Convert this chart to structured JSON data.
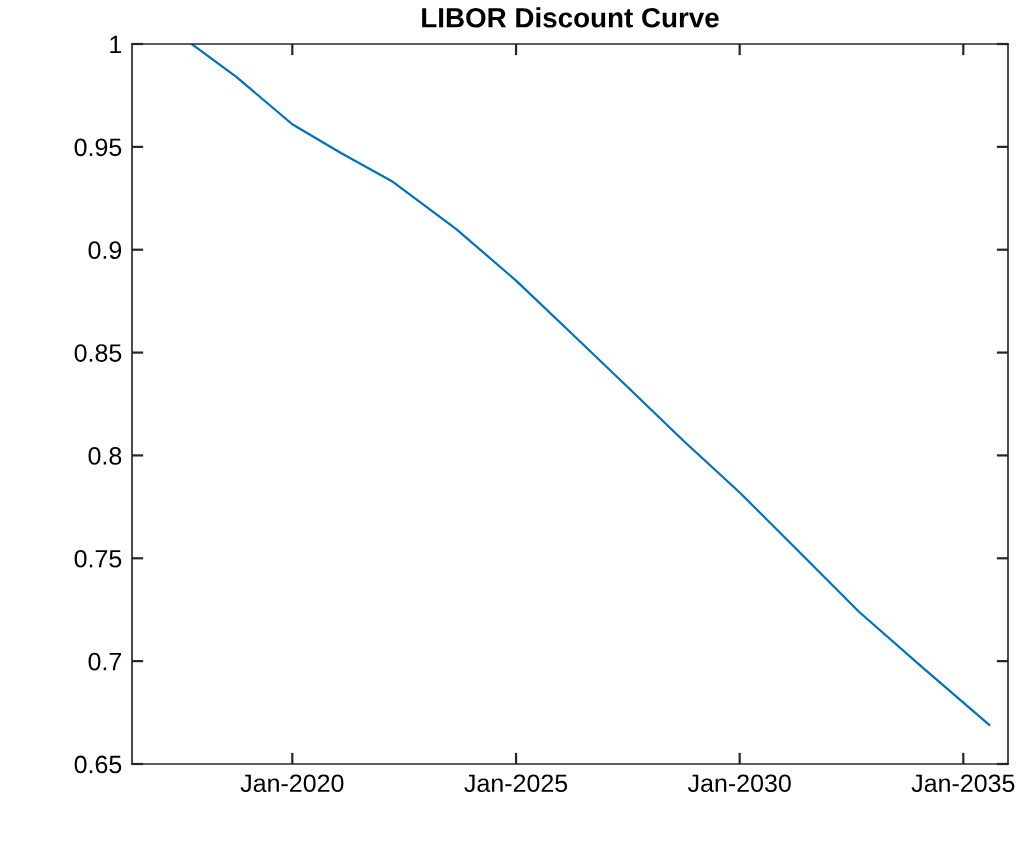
{
  "chart_data": {
    "type": "line",
    "title": "LIBOR Discount Curve",
    "x": [
      "2017-10",
      "2018-10",
      "2020-01",
      "2021-02",
      "2022-04",
      "2023-09",
      "2025-01",
      "2026-03",
      "2027-06",
      "2028-10",
      "2030-01",
      "2031-04",
      "2032-09",
      "2034-02",
      "2035-08"
    ],
    "series": [
      {
        "color": "#0072bd",
        "values": [
          1.0,
          0.984,
          0.961,
          0.947,
          0.933,
          0.91,
          0.885,
          0.861,
          0.835,
          0.807,
          0.782,
          0.755,
          0.724,
          0.697,
          0.669
        ]
      }
    ],
    "xlim": [
      "2016-06",
      "2036-01"
    ],
    "xticks": [
      {
        "value": "2020-01",
        "label": "Jan-2020"
      },
      {
        "value": "2025-01",
        "label": "Jan-2025"
      },
      {
        "value": "2030-01",
        "label": "Jan-2030"
      },
      {
        "value": "2035-01",
        "label": "Jan-2035"
      }
    ],
    "ylim": [
      0.65,
      1
    ],
    "yticks": [
      0.65,
      0.7,
      0.75,
      0.8,
      0.85,
      0.9,
      0.95,
      1
    ],
    "grid": false,
    "legend": false,
    "marker": "none",
    "line_style": "solid"
  }
}
